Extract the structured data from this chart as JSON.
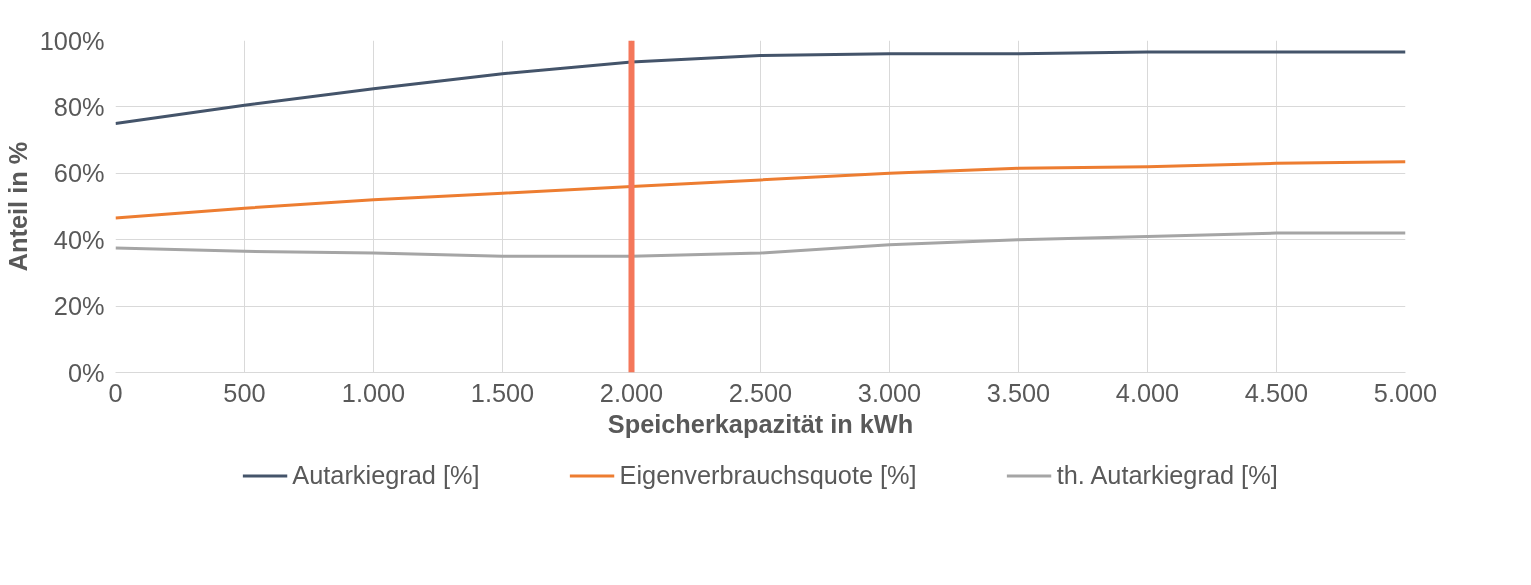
{
  "chart_data": {
    "type": "line",
    "xlabel": "Speicherkapazität in kWh",
    "ylabel": "Anteil in %",
    "x": [
      0,
      500,
      1000,
      1500,
      2000,
      2500,
      3000,
      3500,
      4000,
      4500,
      5000
    ],
    "series": [
      {
        "name": "Autarkiegrad [%]",
        "color": "#44546a",
        "values": [
          75,
          80.5,
          85.5,
          90,
          93.5,
          95.5,
          96,
          96,
          96.5,
          96.5,
          96.5
        ]
      },
      {
        "name": "Eigenverbrauchsquote [%]",
        "color": "#ed7d31",
        "values": [
          46.5,
          49.5,
          52,
          54,
          56,
          58,
          60,
          61.5,
          62,
          63,
          63.5
        ]
      },
      {
        "name": "th. Autarkiegrad [%]",
        "color": "#a5a5a5",
        "values": [
          37.5,
          36.5,
          36,
          35,
          35,
          36,
          38.5,
          40,
          41,
          42,
          42
        ]
      }
    ],
    "xlim": [
      0,
      5000
    ],
    "xticks": [
      {
        "value": 0,
        "label": "0"
      },
      {
        "value": 500,
        "label": "500"
      },
      {
        "value": 1000,
        "label": "1.000"
      },
      {
        "value": 1500,
        "label": "1.500"
      },
      {
        "value": 2000,
        "label": "2.000"
      },
      {
        "value": 2500,
        "label": "2.500"
      },
      {
        "value": 3000,
        "label": "3.000"
      },
      {
        "value": 3500,
        "label": "3.500"
      },
      {
        "value": 4000,
        "label": "4.000"
      },
      {
        "value": 4500,
        "label": "4.500"
      },
      {
        "value": 5000,
        "label": "5.000"
      }
    ],
    "ylim": [
      0,
      100
    ],
    "yticks": [
      {
        "value": 0,
        "label": "0%"
      },
      {
        "value": 20,
        "label": "20%"
      },
      {
        "value": 40,
        "label": "40%"
      },
      {
        "value": 60,
        "label": "60%"
      },
      {
        "value": 80,
        "label": "80%"
      },
      {
        "value": 100,
        "label": "100%"
      }
    ],
    "ref_lines": [
      {
        "axis": "x",
        "value": 2000,
        "label": null,
        "color": "#f4775a"
      }
    ],
    "grid": true,
    "legend": "bottom",
    "marker": "none",
    "line_style": "solid"
  }
}
